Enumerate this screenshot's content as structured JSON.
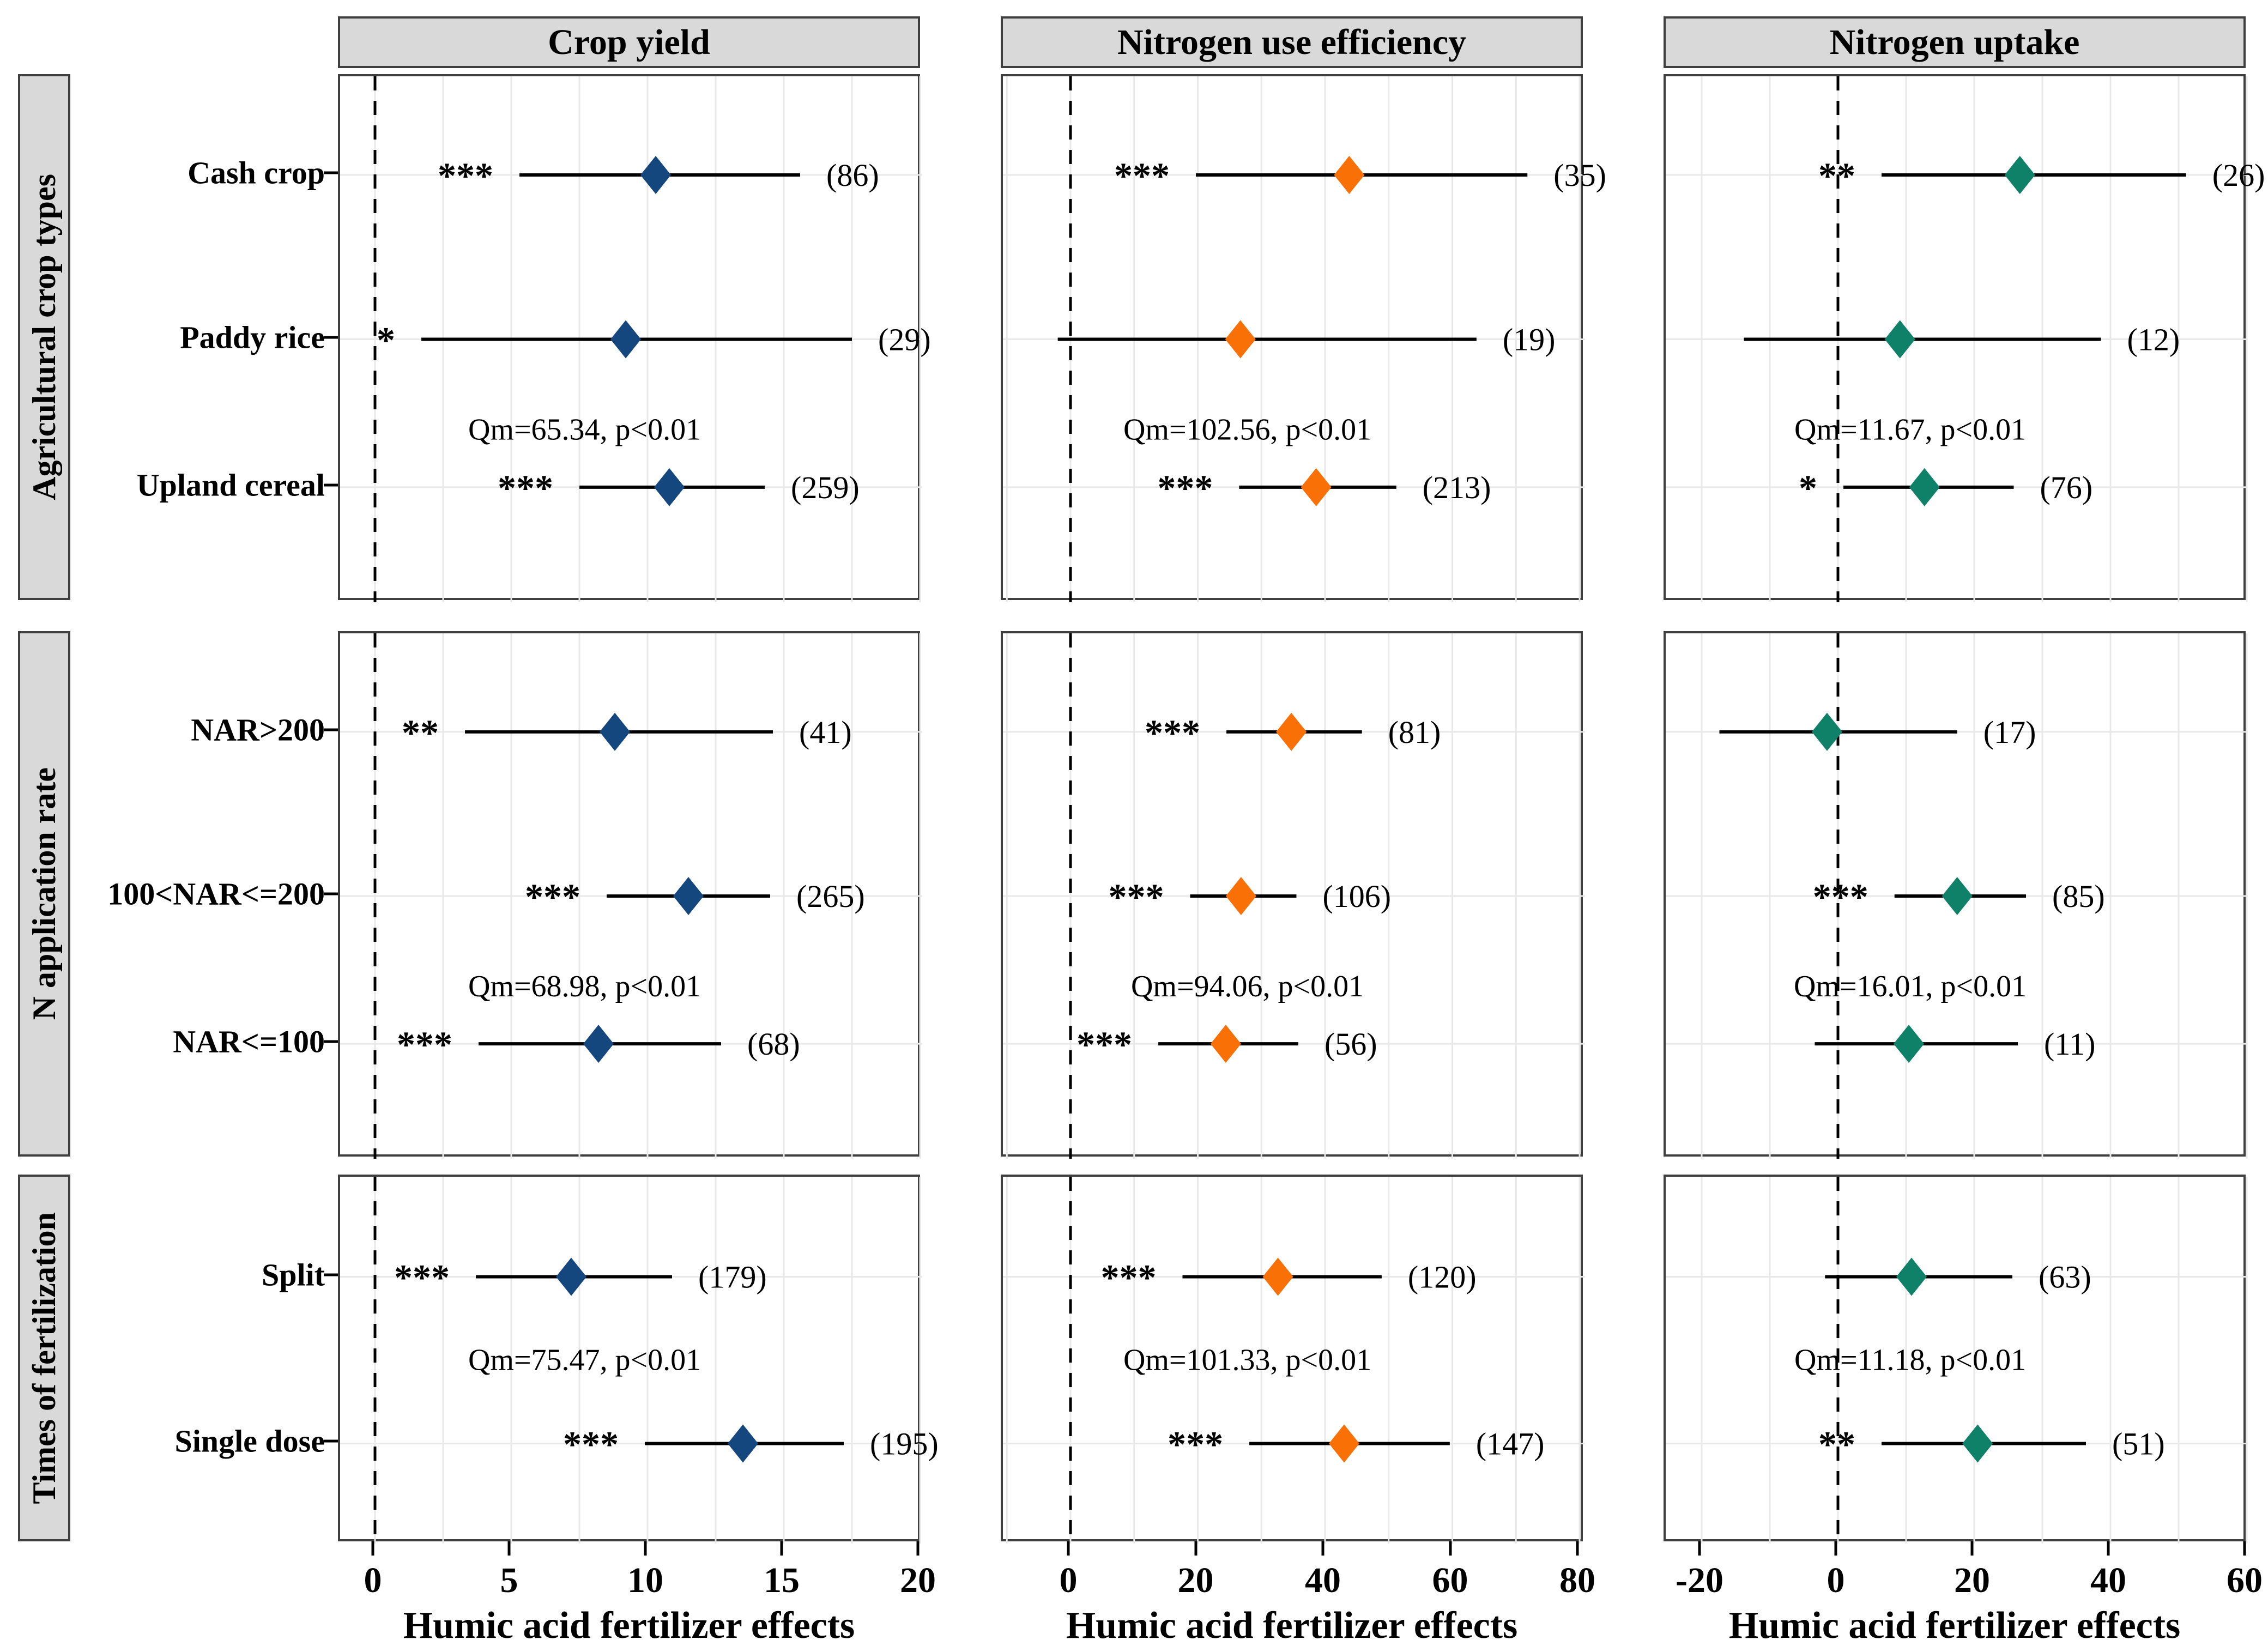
{
  "chart_data": {
    "type": "scatter",
    "subtype": "forest-plot",
    "x_axis_title": "Humic acid fertilizer effects",
    "columns": [
      {
        "id": "crop-yield",
        "title": "Crop yield",
        "xlabel": "Humic acid fertilizer effects",
        "marker_color": "#14477e",
        "axis": {
          "ticks": [
            0,
            5,
            10,
            15,
            20
          ],
          "grid_step": 2.5,
          "grid_start": 0,
          "grid_end": 20,
          "zero_line": 0
        }
      },
      {
        "id": "nitrogen-use-efficiency",
        "title": "Nitrogen use efficiency",
        "xlabel": "Humic acid fertilizer effects",
        "marker_color": "#f97106",
        "axis": {
          "ticks": [
            0,
            20,
            40,
            60,
            80
          ],
          "grid_step": 10,
          "grid_start": -10,
          "grid_end": 80,
          "zero_line": 0
        }
      },
      {
        "id": "nitrogen-uptake",
        "title": "Nitrogen uptake",
        "xlabel": "Humic acid fertilizer effects",
        "marker_color": "#0f8168",
        "axis": {
          "ticks": [
            -20,
            0,
            20,
            40,
            60
          ],
          "grid_step": 10,
          "grid_start": -20,
          "grid_end": 60,
          "zero_line": 0
        }
      }
    ],
    "row_groups": [
      {
        "label": "Agricultural crop types",
        "categories": [
          "Cash crop",
          "Paddy rice",
          "Upland cereal"
        ]
      },
      {
        "label": "N application rate",
        "categories": [
          "NAR>200",
          "100<NAR<=200",
          "NAR<=100"
        ]
      },
      {
        "label": "Times of fertilization",
        "categories": [
          "Split",
          "Single dose"
        ]
      }
    ],
    "panels": [
      {
        "row": 0,
        "col": 0,
        "qm": "Qm=65.34, p<0.01",
        "points": [
          {
            "category": "Cash crop",
            "est": 10.3,
            "lo": 5.3,
            "hi": 15.6,
            "stars": "***",
            "n": 86
          },
          {
            "category": "Paddy rice",
            "est": 9.2,
            "lo": 1.7,
            "hi": 17.5,
            "stars": "*",
            "n": 29
          },
          {
            "category": "Upland cereal",
            "est": 10.8,
            "lo": 7.5,
            "hi": 14.3,
            "stars": "***",
            "n": 259
          }
        ]
      },
      {
        "row": 0,
        "col": 1,
        "qm": "Qm=102.56, p<0.01",
        "points": [
          {
            "category": "Cash crop",
            "est": 43.8,
            "lo": 19.7,
            "hi": 71.8,
            "stars": "***",
            "n": 35
          },
          {
            "category": "Paddy rice",
            "est": 26.7,
            "lo": -2.0,
            "hi": 63.8,
            "stars": "",
            "n": 19
          },
          {
            "category": "Upland cereal",
            "est": 38.6,
            "lo": 26.5,
            "hi": 51.2,
            "stars": "***",
            "n": 213
          }
        ]
      },
      {
        "row": 0,
        "col": 2,
        "qm": "Qm=11.67, p<0.01",
        "points": [
          {
            "category": "Cash crop",
            "est": 26.7,
            "lo": 6.4,
            "hi": 51.1,
            "stars": "**",
            "n": 26
          },
          {
            "category": "Paddy rice",
            "est": 9.1,
            "lo": -13.8,
            "hi": 38.6,
            "stars": "",
            "n": 12
          },
          {
            "category": "Upland cereal",
            "est": 12.7,
            "lo": 0.8,
            "hi": 25.8,
            "stars": "*",
            "n": 76
          }
        ]
      },
      {
        "row": 1,
        "col": 0,
        "qm": "Qm=68.98, p<0.01",
        "points": [
          {
            "category": "NAR>200",
            "est": 8.8,
            "lo": 3.3,
            "hi": 14.6,
            "stars": "**",
            "n": 41
          },
          {
            "category": "100<NAR<=200",
            "est": 11.5,
            "lo": 8.5,
            "hi": 14.5,
            "stars": "***",
            "n": 265
          },
          {
            "category": "NAR<=100",
            "est": 8.2,
            "lo": 3.8,
            "hi": 12.7,
            "stars": "***",
            "n": 68
          }
        ]
      },
      {
        "row": 1,
        "col": 1,
        "qm": "Qm=94.06, p<0.01",
        "points": [
          {
            "category": "NAR>200",
            "est": 34.7,
            "lo": 24.5,
            "hi": 45.8,
            "stars": "***",
            "n": 81
          },
          {
            "category": "100<NAR<=200",
            "est": 26.8,
            "lo": 18.8,
            "hi": 35.5,
            "stars": "***",
            "n": 106
          },
          {
            "category": "NAR<=100",
            "est": 24.4,
            "lo": 13.8,
            "hi": 35.8,
            "stars": "***",
            "n": 56
          }
        ]
      },
      {
        "row": 1,
        "col": 2,
        "qm": "Qm=16.01, p<0.01",
        "points": [
          {
            "category": "NAR>200",
            "est": -1.6,
            "lo": -17.4,
            "hi": 17.5,
            "stars": "",
            "n": 17
          },
          {
            "category": "100<NAR<=200",
            "est": 17.5,
            "lo": 8.3,
            "hi": 27.6,
            "stars": "***",
            "n": 85
          },
          {
            "category": "NAR<=100",
            "est": 10.4,
            "lo": -3.4,
            "hi": 26.4,
            "stars": "",
            "n": 11
          }
        ]
      },
      {
        "row": 2,
        "col": 0,
        "qm": "Qm=75.47, p<0.01",
        "points": [
          {
            "category": "Split",
            "est": 7.2,
            "lo": 3.7,
            "hi": 10.9,
            "stars": "***",
            "n": 179
          },
          {
            "category": "Single dose",
            "est": 13.5,
            "lo": 9.9,
            "hi": 17.2,
            "stars": "***",
            "n": 195
          }
        ]
      },
      {
        "row": 2,
        "col": 1,
        "qm": "Qm=101.33, p<0.01",
        "points": [
          {
            "category": "Split",
            "est": 32.6,
            "lo": 17.6,
            "hi": 48.9,
            "stars": "***",
            "n": 120
          },
          {
            "category": "Single dose",
            "est": 43.0,
            "lo": 28.1,
            "hi": 59.6,
            "stars": "***",
            "n": 147
          }
        ]
      },
      {
        "row": 2,
        "col": 2,
        "qm": "Qm=11.18, p<0.01",
        "points": [
          {
            "category": "Split",
            "est": 10.8,
            "lo": -1.9,
            "hi": 25.6,
            "stars": "",
            "n": 63
          },
          {
            "category": "Single dose",
            "est": 20.5,
            "lo": 6.4,
            "hi": 36.4,
            "stars": "**",
            "n": 51
          }
        ]
      }
    ],
    "style": {
      "grid_color": "#e8e8e8",
      "border_color": "#3f3f3f",
      "header_fill": "#d9d9d9",
      "ci_color": "#000000"
    }
  }
}
